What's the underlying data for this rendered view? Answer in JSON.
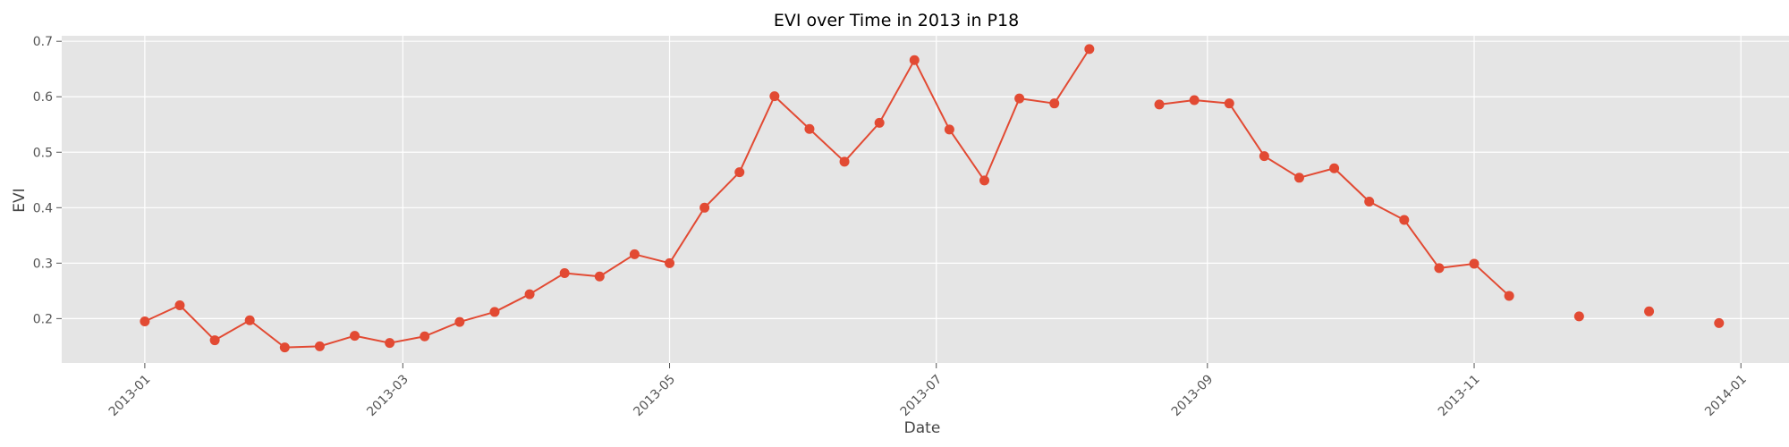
{
  "chart_data": {
    "type": "line",
    "title": "EVI over Time in 2013 in P18",
    "xlabel": "Date",
    "ylabel": "EVI",
    "x_ticks": [
      "2013-01",
      "2013-03",
      "2013-05",
      "2013-07",
      "2013-09",
      "2013-11",
      "2014-01"
    ],
    "y_ticks": [
      "0.2",
      "0.3",
      "0.4",
      "0.5",
      "0.6",
      "0.7"
    ],
    "ylim": [
      0.12,
      0.71
    ],
    "xlim": [
      "2012-12-13",
      "2014-01-12"
    ],
    "grid": true,
    "colors": {
      "series": "#E24A33",
      "plot_bg": "#E5E5E5",
      "grid": "#FFFFFF"
    },
    "series": [
      {
        "points": [
          {
            "date": "2013-01-01",
            "value": 0.195
          },
          {
            "date": "2013-01-09",
            "value": 0.224
          },
          {
            "date": "2013-01-17",
            "value": 0.161
          },
          {
            "date": "2013-01-25",
            "value": 0.197
          },
          {
            "date": "2013-02-02",
            "value": 0.148
          },
          {
            "date": "2013-02-10",
            "value": 0.15
          },
          {
            "date": "2013-02-18",
            "value": 0.169
          },
          {
            "date": "2013-02-26",
            "value": 0.156
          },
          {
            "date": "2013-03-06",
            "value": 0.168
          },
          {
            "date": "2013-03-14",
            "value": 0.194
          },
          {
            "date": "2013-03-22",
            "value": 0.212
          },
          {
            "date": "2013-03-30",
            "value": 0.244
          },
          {
            "date": "2013-04-07",
            "value": 0.282
          },
          {
            "date": "2013-04-15",
            "value": 0.276
          },
          {
            "date": "2013-04-23",
            "value": 0.316
          },
          {
            "date": "2013-05-01",
            "value": 0.3
          },
          {
            "date": "2013-05-09",
            "value": 0.4
          },
          {
            "date": "2013-05-17",
            "value": 0.464
          },
          {
            "date": "2013-05-25",
            "value": 0.601
          },
          {
            "date": "2013-06-02",
            "value": 0.542
          },
          {
            "date": "2013-06-10",
            "value": 0.483
          },
          {
            "date": "2013-06-18",
            "value": 0.553
          },
          {
            "date": "2013-06-26",
            "value": 0.666
          },
          {
            "date": "2013-07-04",
            "value": 0.541
          },
          {
            "date": "2013-07-12",
            "value": 0.449
          },
          {
            "date": "2013-07-20",
            "value": 0.597
          },
          {
            "date": "2013-07-28",
            "value": 0.588
          },
          {
            "date": "2013-08-05",
            "value": 0.686
          },
          {
            "date": "2013-08-13",
            "value": null
          },
          {
            "date": "2013-08-21",
            "value": 0.586
          },
          {
            "date": "2013-08-29",
            "value": 0.594
          },
          {
            "date": "2013-09-06",
            "value": 0.588
          },
          {
            "date": "2013-09-14",
            "value": 0.493
          },
          {
            "date": "2013-09-22",
            "value": 0.454
          },
          {
            "date": "2013-09-30",
            "value": 0.471
          },
          {
            "date": "2013-10-08",
            "value": 0.411
          },
          {
            "date": "2013-10-16",
            "value": 0.378
          },
          {
            "date": "2013-10-24",
            "value": 0.291
          },
          {
            "date": "2013-11-01",
            "value": 0.299
          },
          {
            "date": "2013-11-09",
            "value": 0.241
          },
          {
            "date": "2013-11-17",
            "value": null
          },
          {
            "date": "2013-11-25",
            "value": 0.204
          },
          {
            "date": "2013-12-03",
            "value": null
          },
          {
            "date": "2013-12-11",
            "value": 0.213
          },
          {
            "date": "2013-12-19",
            "value": null
          },
          {
            "date": "2013-12-27",
            "value": 0.192
          }
        ]
      }
    ]
  }
}
